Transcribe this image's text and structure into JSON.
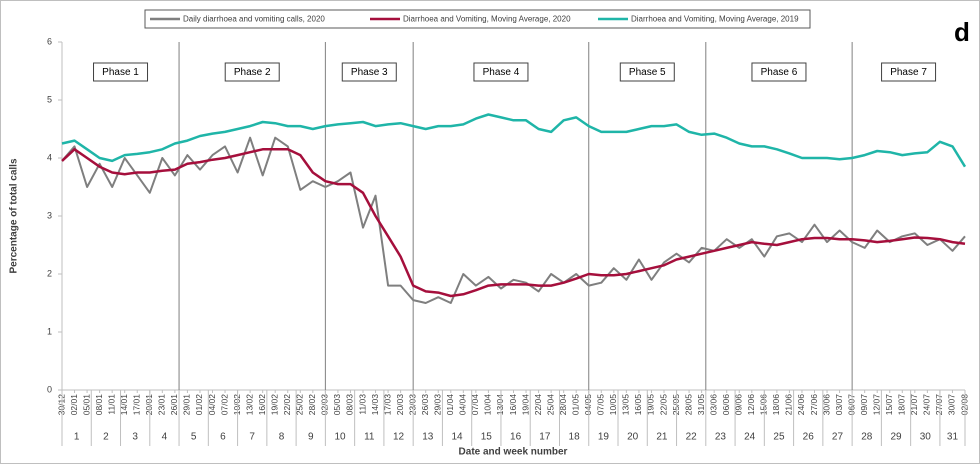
{
  "chart_data": {
    "type": "line",
    "panel_label": "d",
    "xlabel": "Date and week number",
    "ylabel": "Percentage of total calls",
    "legend": "top",
    "categories": [
      "30/12",
      "02/01",
      "05/01",
      "08/01",
      "11/01",
      "14/01",
      "17/01",
      "20/01",
      "23/01",
      "26/01",
      "29/01",
      "01/02",
      "04/02",
      "07/02",
      "10/02",
      "13/02",
      "16/02",
      "19/02",
      "22/02",
      "25/02",
      "28/02",
      "02/03",
      "05/03",
      "08/03",
      "11/03",
      "14/03",
      "17/03",
      "20/03",
      "23/03",
      "26/03",
      "29/03",
      "01/04",
      "04/04",
      "07/04",
      "10/04",
      "13/04",
      "16/04",
      "19/04",
      "22/04",
      "25/04",
      "28/04",
      "01/05",
      "04/05",
      "07/05",
      "10/05",
      "13/05",
      "16/05",
      "19/05",
      "22/05",
      "25/05",
      "28/05",
      "31/05",
      "03/06",
      "06/06",
      "09/06",
      "12/06",
      "15/06",
      "18/06",
      "21/06",
      "24/06",
      "27/06",
      "30/06",
      "03/07",
      "06/07",
      "09/07",
      "12/07",
      "15/07",
      "18/07",
      "21/07",
      "24/07",
      "27/07",
      "30/07",
      "02/08"
    ],
    "weeks": [
      "1",
      "2",
      "3",
      "4",
      "5",
      "6",
      "7",
      "8",
      "9",
      "10",
      "11",
      "12",
      "13",
      "14",
      "15",
      "16",
      "17",
      "18",
      "19",
      "20",
      "21",
      "22",
      "23",
      "24",
      "25",
      "26",
      "27",
      "28",
      "29",
      "30",
      "31"
    ],
    "phases": [
      {
        "label": "Phase 1",
        "weeks": [
          "1",
          "4"
        ]
      },
      {
        "label": "Phase 2",
        "weeks": [
          "5",
          "9"
        ]
      },
      {
        "label": "Phase 3",
        "weeks": [
          "10",
          "12"
        ]
      },
      {
        "label": "Phase 4",
        "weeks": [
          "13",
          "18"
        ]
      },
      {
        "label": "Phase 5",
        "weeks": [
          "19",
          "22"
        ]
      },
      {
        "label": "Phase 6",
        "weeks": [
          "23",
          "27"
        ]
      },
      {
        "label": "Phase 7",
        "weeks": [
          "28",
          "31"
        ]
      }
    ],
    "series": [
      {
        "name": "Daily diarrhoea and vomiting calls, 2020",
        "color": "#7f7f7f",
        "width": 2,
        "values": [
          3.95,
          4.2,
          3.5,
          3.9,
          3.5,
          4.0,
          3.7,
          3.4,
          4.0,
          3.7,
          4.05,
          3.8,
          4.05,
          4.2,
          3.75,
          4.35,
          3.7,
          4.35,
          4.2,
          3.45,
          3.6,
          3.5,
          3.6,
          3.75,
          2.8,
          3.35,
          1.8,
          1.8,
          1.55,
          1.5,
          1.6,
          1.5,
          2.0,
          1.8,
          1.95,
          1.75,
          1.9,
          1.85,
          1.7,
          2.0,
          1.85,
          2.0,
          1.8,
          1.85,
          2.1,
          1.9,
          2.25,
          1.9,
          2.2,
          2.35,
          2.2,
          2.45,
          2.4,
          2.6,
          2.45,
          2.6,
          2.3,
          2.65,
          2.7,
          2.55,
          2.85,
          2.55,
          2.75,
          2.55,
          2.45,
          2.75,
          2.55,
          2.65,
          2.7,
          2.5,
          2.6,
          2.4,
          2.65
        ]
      },
      {
        "name": "Diarrhoea and Vomiting, Moving Average, 2020",
        "color": "#a50f3c",
        "width": 2.5,
        "values": [
          3.95,
          4.15,
          4.0,
          3.85,
          3.75,
          3.72,
          3.75,
          3.75,
          3.78,
          3.8,
          3.9,
          3.93,
          3.97,
          4.0,
          4.05,
          4.1,
          4.15,
          4.15,
          4.15,
          4.05,
          3.75,
          3.6,
          3.55,
          3.55,
          3.4,
          3.0,
          2.65,
          2.3,
          1.8,
          1.7,
          1.68,
          1.62,
          1.65,
          1.72,
          1.8,
          1.82,
          1.82,
          1.82,
          1.8,
          1.8,
          1.85,
          1.92,
          2.0,
          1.98,
          1.98,
          2.0,
          2.05,
          2.1,
          2.15,
          2.25,
          2.3,
          2.35,
          2.4,
          2.45,
          2.5,
          2.55,
          2.52,
          2.5,
          2.55,
          2.6,
          2.62,
          2.62,
          2.6,
          2.6,
          2.58,
          2.55,
          2.57,
          2.6,
          2.63,
          2.62,
          2.6,
          2.55,
          2.52
        ]
      },
      {
        "name": "Diarrhoea and Vomiting, Moving Average, 2019",
        "color": "#1fb5a8",
        "width": 2.5,
        "values": [
          4.25,
          4.3,
          4.15,
          4.0,
          3.95,
          4.05,
          4.07,
          4.1,
          4.15,
          4.25,
          4.3,
          4.38,
          4.42,
          4.45,
          4.5,
          4.55,
          4.62,
          4.6,
          4.55,
          4.55,
          4.5,
          4.55,
          4.58,
          4.6,
          4.62,
          4.55,
          4.58,
          4.6,
          4.55,
          4.5,
          4.55,
          4.55,
          4.58,
          4.68,
          4.75,
          4.7,
          4.65,
          4.65,
          4.5,
          4.45,
          4.65,
          4.7,
          4.55,
          4.45,
          4.45,
          4.45,
          4.5,
          4.55,
          4.55,
          4.58,
          4.45,
          4.4,
          4.42,
          4.35,
          4.25,
          4.2,
          4.2,
          4.15,
          4.08,
          4.0,
          4.0,
          4.0,
          3.98,
          4.0,
          4.05,
          4.12,
          4.1,
          4.05,
          4.08,
          4.1,
          4.28,
          4.2,
          3.85
        ]
      }
    ],
    "ylim": [
      0,
      6
    ],
    "yticks": [
      0,
      1,
      2,
      3,
      4,
      5,
      6
    ]
  }
}
